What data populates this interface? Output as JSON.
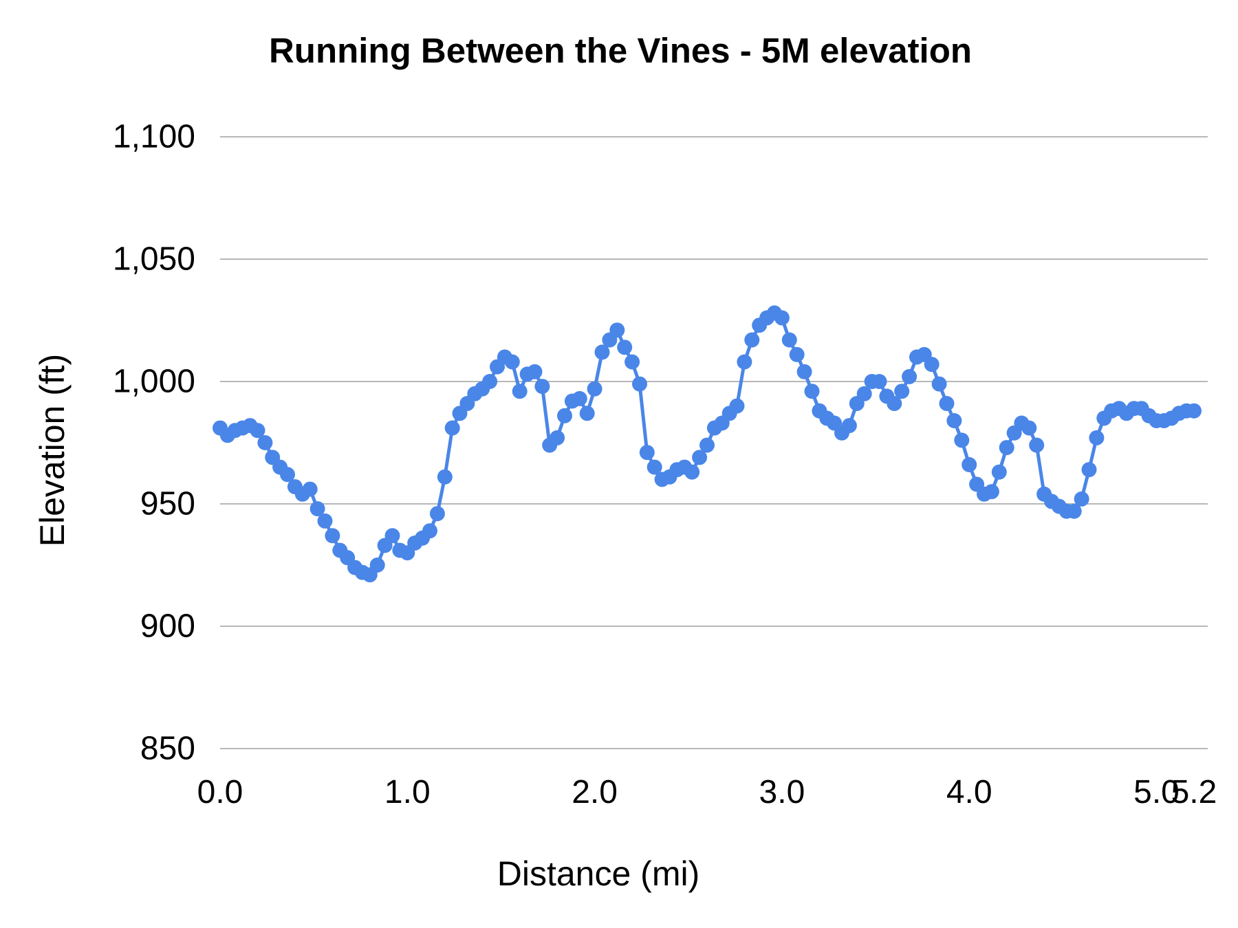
{
  "page": {
    "background": "#ffffff"
  },
  "style": {
    "series_color": "#4a86e8",
    "grid_color": "#b7b7b7",
    "text_color": "#000000"
  },
  "chart_data": {
    "type": "line",
    "title": "Running Between the Vines - 5M elevation",
    "xlabel": "Distance (mi)",
    "ylabel": "Elevation (ft)",
    "xlim": [
      0,
      5.2
    ],
    "ylim": [
      850,
      1100
    ],
    "grid": "horizontal gridlines only",
    "legend": "none",
    "markers": "filled circles on every point",
    "y_ticks": [
      {
        "v": 850,
        "label": "850"
      },
      {
        "v": 900,
        "label": "900"
      },
      {
        "v": 950,
        "label": "950"
      },
      {
        "v": 1000,
        "label": "1,000"
      },
      {
        "v": 1050,
        "label": "1,050"
      },
      {
        "v": 1100,
        "label": "1,100"
      }
    ],
    "x_ticks": [
      {
        "v": 0,
        "label": "0.0"
      },
      {
        "v": 1,
        "label": "1.0"
      },
      {
        "v": 2,
        "label": "2.0"
      },
      {
        "v": 3,
        "label": "3.0"
      },
      {
        "v": 4,
        "label": "4.0"
      },
      {
        "v": 5,
        "label": "5.0"
      },
      {
        "v": 5.2,
        "label": "5.2"
      }
    ],
    "series": [
      {
        "name": "Elevation",
        "color": "#4a86e8",
        "x": [
          0.0,
          0.04,
          0.08,
          0.12,
          0.16,
          0.2,
          0.24,
          0.28,
          0.32,
          0.36,
          0.4,
          0.44,
          0.48,
          0.52,
          0.56,
          0.6,
          0.64,
          0.68,
          0.72,
          0.76,
          0.8,
          0.84,
          0.88,
          0.92,
          0.96,
          1.0,
          1.04,
          1.08,
          1.12,
          1.16,
          1.2,
          1.24,
          1.28,
          1.32,
          1.36,
          1.4,
          1.44,
          1.48,
          1.52,
          1.56,
          1.6,
          1.64,
          1.68,
          1.72,
          1.76,
          1.8,
          1.84,
          1.88,
          1.92,
          1.96,
          2.0,
          2.04,
          2.08,
          2.12,
          2.16,
          2.2,
          2.24,
          2.28,
          2.32,
          2.36,
          2.4,
          2.44,
          2.48,
          2.52,
          2.56,
          2.6,
          2.64,
          2.68,
          2.72,
          2.76,
          2.8,
          2.84,
          2.88,
          2.92,
          2.96,
          3.0,
          3.04,
          3.08,
          3.12,
          3.16,
          3.2,
          3.24,
          3.28,
          3.32,
          3.36,
          3.4,
          3.44,
          3.48,
          3.52,
          3.56,
          3.6,
          3.64,
          3.68,
          3.72,
          3.76,
          3.8,
          3.84,
          3.88,
          3.92,
          3.96,
          4.0,
          4.04,
          4.08,
          4.12,
          4.16,
          4.2,
          4.24,
          4.28,
          4.32,
          4.36,
          4.4,
          4.44,
          4.48,
          4.52,
          4.56,
          4.6,
          4.64,
          4.68,
          4.72,
          4.76,
          4.8,
          4.84,
          4.88,
          4.92,
          4.96,
          5.0,
          5.04,
          5.08,
          5.12,
          5.16,
          5.2
        ],
        "y": [
          981,
          978,
          980,
          981,
          982,
          980,
          975,
          969,
          965,
          962,
          957,
          954,
          956,
          948,
          943,
          937,
          931,
          928,
          924,
          922,
          921,
          925,
          933,
          937,
          931,
          930,
          934,
          936,
          939,
          946,
          961,
          981,
          987,
          991,
          995,
          997,
          1000,
          1006,
          1010,
          1008,
          996,
          1003,
          1004,
          998,
          974,
          977,
          986,
          992,
          993,
          987,
          997,
          1012,
          1017,
          1021,
          1014,
          1008,
          999,
          971,
          965,
          960,
          961,
          964,
          965,
          963,
          969,
          974,
          981,
          983,
          987,
          990,
          1008,
          1017,
          1023,
          1026,
          1028,
          1026,
          1017,
          1011,
          1004,
          996,
          988,
          985,
          983,
          979,
          982,
          991,
          995,
          1000,
          1000,
          994,
          991,
          996,
          1002,
          1010,
          1011,
          1007,
          999,
          991,
          984,
          976,
          966,
          958,
          954,
          955,
          963,
          973,
          979,
          983,
          981,
          974,
          954,
          951,
          949,
          947,
          947,
          952,
          964,
          977,
          985,
          988,
          989,
          987,
          989,
          989,
          986,
          984,
          984,
          985,
          987,
          988,
          988
        ]
      }
    ]
  }
}
